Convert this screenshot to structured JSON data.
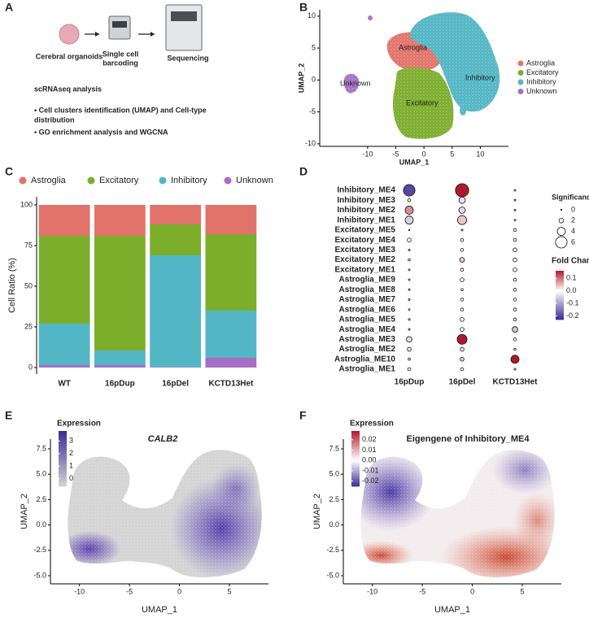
{
  "panel_labels": [
    "A",
    "B",
    "C",
    "D",
    "E",
    "F"
  ],
  "workflow": {
    "steps": [
      [
        "Cerebral organoids"
      ],
      [
        "Single cell",
        "barcoding"
      ],
      [
        "Sequencing"
      ]
    ],
    "analysis_title": "scRNAseq analysis",
    "bullets": [
      [
        "• Cell clusters identification (UMAP) and Cell-type",
        "distribution"
      ],
      [
        "• GO enrichment analysis and WGCNA"
      ]
    ]
  },
  "chart_data": [
    {
      "type": "cluster_umap",
      "xlabel": "UMAP_1",
      "ylabel": "UMAP_2",
      "xlim": [
        -18.5,
        15
      ],
      "xticks": [
        -10,
        -5,
        0,
        5,
        10
      ],
      "ylim": [
        -10.4,
        11
      ],
      "yticks": [
        -10,
        -5,
        0,
        5,
        10
      ],
      "series": [
        {
          "name": "Astroglia",
          "color": "#E2736A"
        },
        {
          "name": "Excitatory",
          "color": "#7CAE2C"
        },
        {
          "name": "Inhibitory",
          "color": "#52B6C4"
        },
        {
          "name": "Unknown",
          "color": "#A66FC6"
        }
      ],
      "annotations": [
        "Astroglia",
        "Unknown",
        "Inhibitory",
        "Excitatory"
      ]
    },
    {
      "type": "stacked_bar",
      "ylabel": "Cell Ratio (%)",
      "categories": [
        "WT",
        "16pDup",
        "16pDel",
        "KCTD13Het"
      ],
      "series": [
        {
          "name": "Astroglia",
          "color": "#E2736A",
          "values": [
            19,
            19,
            12,
            18
          ]
        },
        {
          "name": "Excitatory",
          "color": "#7CAE2C",
          "values": [
            54,
            70.5,
            19,
            47
          ]
        },
        {
          "name": "Inhibitory",
          "color": "#52B6C4",
          "values": [
            25.5,
            9,
            68.7,
            29
          ]
        },
        {
          "name": "Unknown",
          "color": "#A66FC6",
          "values": [
            1.5,
            1.5,
            0.3,
            6
          ]
        }
      ],
      "ylim": [
        -4,
        105
      ],
      "yticks": [
        0,
        25,
        50,
        75,
        100
      ]
    },
    {
      "type": "dot",
      "categories": [
        "Inhibitory_ME4",
        "Inhibitory_ME3",
        "Inhibitory_ME2",
        "Inhibitory_ME1",
        "Excitatory_ME5",
        "Excitatory_ME4",
        "Excitatory_ME3",
        "Excitatory_ME2",
        "Excitatory_ME1",
        "Astroglia_ME9",
        "Astroglia_ME8",
        "Astroglia_ME7",
        "Astroglia_ME6",
        "Astroglia_ME5",
        "Astroglia_ME4",
        "Astroglia_ME3",
        "Astroglia_ME2",
        "Astroglia_ME10",
        "Astroglia_ME1"
      ],
      "series": [
        {
          "name": "16pDup",
          "values": [
            -0.2,
            0,
            0.08,
            -0.05,
            0,
            0,
            0,
            0,
            0,
            0,
            0,
            0,
            0,
            0,
            0,
            -0.04,
            0.02,
            0,
            0
          ],
          "sizes": [
            6,
            1,
            4,
            4,
            0,
            1.5,
            0.3,
            0.5,
            0.2,
            0.2,
            0.2,
            0.2,
            0.2,
            0.3,
            0.3,
            2.5,
            1.5,
            0.5,
            1
          ]
        },
        {
          "name": "16pDel",
          "values": [
            0.2,
            -0.03,
            -0.04,
            0.04,
            0,
            0,
            0,
            0.04,
            0,
            0,
            0,
            0,
            0,
            0,
            0,
            0.17,
            0.02,
            0.04,
            0
          ],
          "sizes": [
            7,
            3,
            3,
            4.5,
            0.3,
            1,
            1,
            2,
            1,
            1.5,
            0.5,
            1,
            1,
            1.5,
            1.5,
            5,
            1.5,
            1.5,
            1
          ]
        },
        {
          "name": "KCTD13Het",
          "values": [
            0,
            0,
            0,
            0,
            0,
            0,
            0,
            0,
            0,
            0,
            0,
            0,
            0,
            0,
            -0.06,
            0,
            0,
            0.2,
            0
          ],
          "sizes": [
            0.2,
            0.2,
            0.2,
            0.2,
            1,
            1,
            1.5,
            1.5,
            1.5,
            1,
            1,
            1,
            1,
            1,
            2.5,
            1,
            0.5,
            4,
            0.3
          ]
        }
      ],
      "size_legend": {
        "title": "Significance",
        "values": [
          0,
          2,
          4,
          6
        ]
      },
      "color_legend": {
        "title": "Fold Change",
        "lim": [
          -0.23,
          0.16
        ],
        "ticks": [
          0.1,
          {
            "value": 0,
            "label": "0.0"
          },
          -0.1,
          -0.2
        ],
        "colors": [
          "#3B2C96",
          "#FFFFFF",
          "#B2182B"
        ]
      }
    },
    {
      "type": "feature_umap",
      "title": "CALB2",
      "xlabel": "UMAP_1",
      "ylabel": "UMAP_2",
      "xlim": [
        -12.9,
        8.9
      ],
      "xticks": [
        -10,
        -5,
        0,
        5
      ],
      "ylim": [
        -5.8,
        8.46
      ],
      "yticks": [
        {
          "value": -5,
          "label": "-5.0"
        },
        -2.5,
        {
          "value": 0,
          "label": "0.0"
        },
        2.5,
        {
          "value": 5,
          "label": "5.0"
        },
        7.5
      ],
      "color_legend": {
        "title": "Expression",
        "lim": [
          -0.6,
          3.8
        ],
        "ticks": [
          3,
          2,
          1,
          0
        ],
        "colors": [
          "#D3D3D3",
          "#3E2B96"
        ]
      }
    },
    {
      "type": "feature_umap",
      "title": "Eigengene of Inhibitory_ME4",
      "xlabel": "UMAP_1",
      "ylabel": "UMAP_2",
      "xlim": [
        -12.9,
        8.9
      ],
      "xticks": [
        -10,
        -5,
        0,
        5
      ],
      "ylim": [
        -5.8,
        8.46
      ],
      "yticks": [
        {
          "value": -5,
          "label": "-5.0"
        },
        -2.5,
        {
          "value": 0,
          "label": "0.0"
        },
        2.5,
        {
          "value": 5,
          "label": "5.0"
        },
        7.5
      ],
      "color_legend": {
        "title": "Expression",
        "lim": [
          -0.025,
          0.0285
        ],
        "ticks": [
          0.02,
          0.01,
          {
            "value": 0,
            "label": "0.00"
          },
          -0.01,
          -0.02
        ],
        "colors": [
          "#3B2C96",
          "#FFFFFF",
          "#B2182B"
        ]
      }
    }
  ]
}
